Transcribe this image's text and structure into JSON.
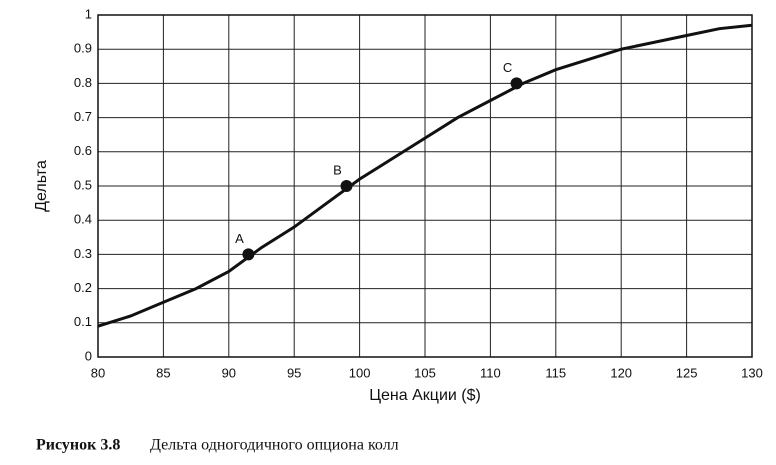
{
  "chart_data": {
    "type": "line",
    "x": [
      80,
      82.5,
      85,
      87.5,
      90,
      92.5,
      95,
      97.5,
      100,
      102.5,
      105,
      107.5,
      110,
      112.5,
      115,
      117.5,
      120,
      122.5,
      125,
      127.5,
      130
    ],
    "values": [
      0.09,
      0.12,
      0.16,
      0.2,
      0.25,
      0.32,
      0.38,
      0.45,
      0.52,
      0.58,
      0.64,
      0.7,
      0.75,
      0.8,
      0.84,
      0.87,
      0.9,
      0.92,
      0.94,
      0.96,
      0.97
    ],
    "color": "#111111",
    "xlim": [
      80,
      130
    ],
    "xticks": [
      80,
      85,
      90,
      95,
      100,
      105,
      110,
      115,
      120,
      125,
      130
    ],
    "ylim": [
      0,
      1
    ],
    "yticks": [
      0,
      0.1,
      0.2,
      0.3,
      0.4,
      0.5,
      0.6,
      0.7,
      0.8,
      0.9,
      1
    ],
    "grid": true,
    "x_label": "Цена Акции ($)",
    "y_label": "Дельта",
    "annotations": [
      {
        "text": "A",
        "x": 91.5,
        "y": 0.3
      },
      {
        "text": "B",
        "x": 99,
        "y": 0.5
      },
      {
        "text": "C",
        "x": 112,
        "y": 0.8
      }
    ],
    "caption_label": "Рисунок 3.8",
    "caption_text": "Дельта одногодичного опциона колл"
  }
}
